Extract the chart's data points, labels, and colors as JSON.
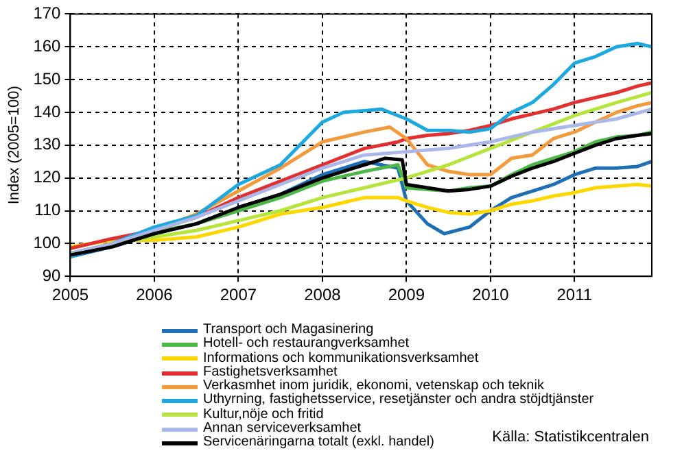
{
  "chart_data": {
    "type": "line",
    "ylabel": "Index (2005=100)",
    "xlim": [
      2005,
      2011.92
    ],
    "xticks": [
      2005,
      2006,
      2007,
      2008,
      2009,
      2010,
      2011
    ],
    "ylim": [
      90,
      170
    ],
    "yticks": [
      90,
      100,
      110,
      120,
      130,
      140,
      150,
      160,
      170
    ],
    "grid": true,
    "legend": "bottom",
    "marker": "none",
    "line_style": "solid",
    "annotations": [
      "Källa: Statistikcentralen"
    ],
    "series": [
      {
        "name": "Transport och Magasinering",
        "color": "#1f6fb5",
        "x": [
          2005,
          2005.5,
          2006,
          2006.5,
          2007,
          2007.5,
          2008,
          2008.5,
          2008.9,
          2009,
          2009.25,
          2009.45,
          2009.75,
          2010,
          2010.25,
          2010.5,
          2010.75,
          2011,
          2011.25,
          2011.5,
          2011.75,
          2011.92
        ],
        "values": [
          96,
          99,
          103,
          106,
          111,
          115,
          121,
          125,
          123,
          113,
          106,
          103,
          105,
          110,
          114,
          116,
          118,
          121,
          123,
          123,
          123.5,
          125
        ]
      },
      {
        "name": "Hotell- och restaurangverksamhet",
        "color": "#4db848",
        "x": [
          2005,
          2005.5,
          2006,
          2006.5,
          2007,
          2007.5,
          2008,
          2008.5,
          2008.9,
          2009,
          2009.25,
          2009.5,
          2009.75,
          2010,
          2010.25,
          2010.5,
          2010.75,
          2011,
          2011.25,
          2011.5,
          2011.75,
          2011.92
        ],
        "values": [
          97,
          99.5,
          103.5,
          106,
          110,
          114,
          119,
          122,
          124,
          117,
          116.5,
          116,
          117,
          117.5,
          121,
          124,
          126,
          128,
          131,
          132.5,
          133,
          134
        ]
      },
      {
        "name": "Informations och kommunikationsverksamhet",
        "color": "#ffd700",
        "x": [
          2005,
          2005.5,
          2006,
          2006.5,
          2007,
          2007.5,
          2008,
          2008.5,
          2008.9,
          2009,
          2009.25,
          2009.5,
          2009.75,
          2010,
          2010.25,
          2010.5,
          2010.75,
          2011,
          2011.25,
          2011.5,
          2011.75,
          2011.92
        ],
        "values": [
          99,
          101,
          101,
          102,
          105,
          109,
          111,
          114,
          114,
          113,
          111,
          109.5,
          109,
          110,
          112,
          113,
          114.5,
          115.5,
          117,
          117.5,
          118,
          117.5
        ]
      },
      {
        "name": "Fastighetsverksamhet",
        "color": "#e03030",
        "x": [
          2005,
          2005.5,
          2006,
          2006.5,
          2007,
          2007.5,
          2008,
          2008.5,
          2008.9,
          2009,
          2009.25,
          2009.5,
          2009.75,
          2010,
          2010.25,
          2010.5,
          2010.75,
          2011,
          2011.25,
          2011.5,
          2011.75,
          2011.92
        ],
        "values": [
          98.5,
          101.5,
          104,
          108,
          114,
          119,
          124,
          129,
          131,
          132,
          133,
          133.5,
          134.5,
          136,
          138,
          139.5,
          141,
          143,
          144.5,
          146,
          148,
          149
        ]
      },
      {
        "name": "Verkasmhet inom juridik, ekonomi, vetenskap och teknik",
        "color": "#f39a3c",
        "x": [
          2005,
          2005.5,
          2006,
          2006.5,
          2007,
          2007.5,
          2008,
          2008.5,
          2008.8,
          2009,
          2009.25,
          2009.5,
          2009.75,
          2010,
          2010.25,
          2010.5,
          2010.75,
          2011,
          2011.25,
          2011.5,
          2011.75,
          2011.92
        ],
        "values": [
          97,
          100,
          104,
          109,
          116,
          123,
          131,
          134,
          135.5,
          132,
          124,
          122,
          121,
          121,
          126,
          127,
          132,
          134,
          137,
          140,
          142,
          143
        ]
      },
      {
        "name": "Uthyrning, fastighetsservice, resetjänster och andra stöjdtjänster",
        "color": "#1ea8e0",
        "x": [
          2005,
          2005.5,
          2006,
          2006.5,
          2007,
          2007.5,
          2008,
          2008.25,
          2008.5,
          2008.7,
          2009,
          2009.25,
          2009.5,
          2009.75,
          2010,
          2010.25,
          2010.5,
          2010.75,
          2011,
          2011.25,
          2011.5,
          2011.75,
          2011.92
        ],
        "values": [
          96,
          100,
          105,
          108.5,
          118,
          124,
          137,
          140,
          140.5,
          141,
          138,
          134.5,
          134.5,
          134,
          135,
          140,
          143,
          148.5,
          155,
          157,
          160,
          161,
          160
        ]
      },
      {
        "name": "Kultur,nöje och fritid",
        "color": "#b5e53c",
        "x": [
          2005,
          2005.5,
          2006,
          2006.5,
          2007,
          2007.5,
          2008,
          2008.5,
          2009,
          2009.5,
          2010,
          2010.5,
          2011,
          2011.5,
          2011.92
        ],
        "values": [
          97,
          100,
          102,
          104,
          107,
          110,
          114,
          117,
          120,
          124,
          129,
          134,
          139,
          143,
          146
        ]
      },
      {
        "name": "Annan serviceverksamhet",
        "color": "#a9b8e8",
        "x": [
          2005,
          2005.5,
          2006,
          2006.5,
          2007,
          2007.5,
          2008,
          2008.5,
          2009,
          2009.5,
          2010,
          2010.5,
          2011,
          2011.5,
          2011.92
        ],
        "values": [
          97,
          100,
          104,
          108,
          113,
          118,
          123,
          127,
          128,
          129,
          131,
          134,
          136,
          138,
          141
        ]
      },
      {
        "name": "Servicenäringarna totalt (exkl. handel)",
        "color": "#000000",
        "x": [
          2005,
          2005.5,
          2006,
          2006.5,
          2007,
          2007.5,
          2008,
          2008.5,
          2008.75,
          2008.95,
          2009,
          2009.25,
          2009.5,
          2009.75,
          2010,
          2010.25,
          2010.5,
          2010.75,
          2011,
          2011.25,
          2011.5,
          2011.75,
          2011.92
        ],
        "values": [
          96.5,
          99,
          103,
          106,
          111,
          115,
          120,
          124,
          126,
          125.5,
          118,
          117,
          116,
          116.5,
          117.5,
          120.5,
          123,
          125,
          127.5,
          130,
          132,
          133,
          133.5
        ]
      }
    ]
  }
}
